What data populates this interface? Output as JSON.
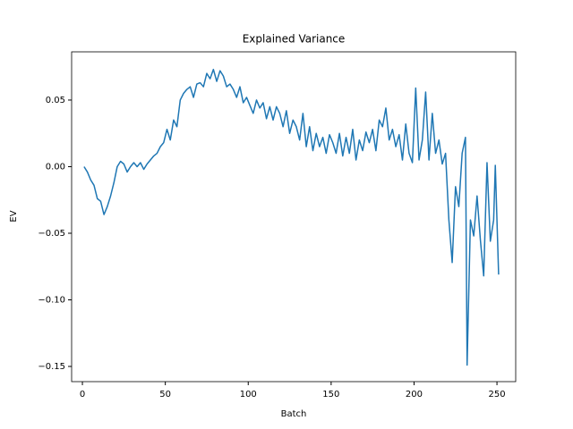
{
  "chart_data": {
    "type": "line",
    "title": "Explained Variance",
    "x_label": "Batch",
    "y_label": "EV",
    "x": [
      1,
      3,
      5,
      7,
      9,
      11,
      13,
      15,
      17,
      19,
      21,
      23,
      25,
      27,
      29,
      31,
      33,
      35,
      37,
      39,
      41,
      43,
      45,
      47,
      49,
      51,
      53,
      55,
      57,
      59,
      61,
      63,
      65,
      67,
      69,
      71,
      73,
      75,
      77,
      79,
      81,
      83,
      85,
      87,
      89,
      91,
      93,
      95,
      97,
      99,
      101,
      103,
      105,
      107,
      109,
      111,
      113,
      115,
      117,
      119,
      121,
      123,
      125,
      127,
      129,
      131,
      133,
      135,
      137,
      139,
      141,
      143,
      145,
      147,
      149,
      151,
      153,
      155,
      157,
      159,
      161,
      163,
      165,
      167,
      169,
      171,
      173,
      175,
      177,
      179,
      181,
      183,
      185,
      187,
      189,
      191,
      193,
      195,
      197,
      199,
      201,
      203,
      205,
      207,
      209,
      211,
      213,
      215,
      217,
      219,
      221,
      223,
      225,
      227,
      229,
      231,
      232,
      234,
      236,
      238,
      240,
      242,
      244,
      246,
      248,
      249,
      251
    ],
    "series": [
      {
        "color": "#1f77b4",
        "values": [
          0.0,
          -0.004,
          -0.01,
          -0.014,
          -0.024,
          -0.026,
          -0.036,
          -0.03,
          -0.022,
          -0.012,
          0.0,
          0.004,
          0.002,
          -0.004,
          0.0,
          0.003,
          0.0,
          0.003,
          -0.002,
          0.002,
          0.005,
          0.008,
          0.01,
          0.015,
          0.018,
          0.028,
          0.02,
          0.035,
          0.03,
          0.05,
          0.055,
          0.058,
          0.06,
          0.052,
          0.062,
          0.063,
          0.06,
          0.07,
          0.066,
          0.073,
          0.064,
          0.072,
          0.068,
          0.06,
          0.062,
          0.058,
          0.052,
          0.06,
          0.048,
          0.052,
          0.046,
          0.04,
          0.05,
          0.044,
          0.048,
          0.036,
          0.045,
          0.035,
          0.045,
          0.04,
          0.03,
          0.042,
          0.025,
          0.035,
          0.03,
          0.02,
          0.04,
          0.015,
          0.03,
          0.012,
          0.025,
          0.015,
          0.022,
          0.01,
          0.024,
          0.018,
          0.01,
          0.025,
          0.008,
          0.022,
          0.01,
          0.028,
          0.005,
          0.02,
          0.012,
          0.026,
          0.018,
          0.028,
          0.012,
          0.035,
          0.03,
          0.044,
          0.02,
          0.028,
          0.015,
          0.024,
          0.005,
          0.032,
          0.01,
          0.003,
          0.059,
          0.005,
          0.02,
          0.056,
          0.005,
          0.04,
          0.01,
          0.02,
          0.002,
          0.01,
          -0.04,
          -0.072,
          -0.015,
          -0.03,
          0.01,
          0.022,
          -0.149,
          -0.04,
          -0.052,
          -0.022,
          -0.055,
          -0.082,
          0.003,
          -0.056,
          -0.04,
          0.001,
          -0.081
        ]
      }
    ],
    "xlim": [
      -6.5,
      261.3
    ],
    "xticks": [
      0,
      50,
      100,
      150,
      200,
      250
    ],
    "ylim": [
      -0.1614,
      0.0862
    ],
    "yticks": [
      {
        "value": -0.15,
        "label": "−0.15"
      },
      {
        "value": -0.1,
        "label": "−0.10"
      },
      {
        "value": -0.05,
        "label": "−0.05"
      },
      {
        "value": 0,
        "label": "0.00"
      },
      {
        "value": 0.05,
        "label": "0.05"
      }
    ]
  }
}
